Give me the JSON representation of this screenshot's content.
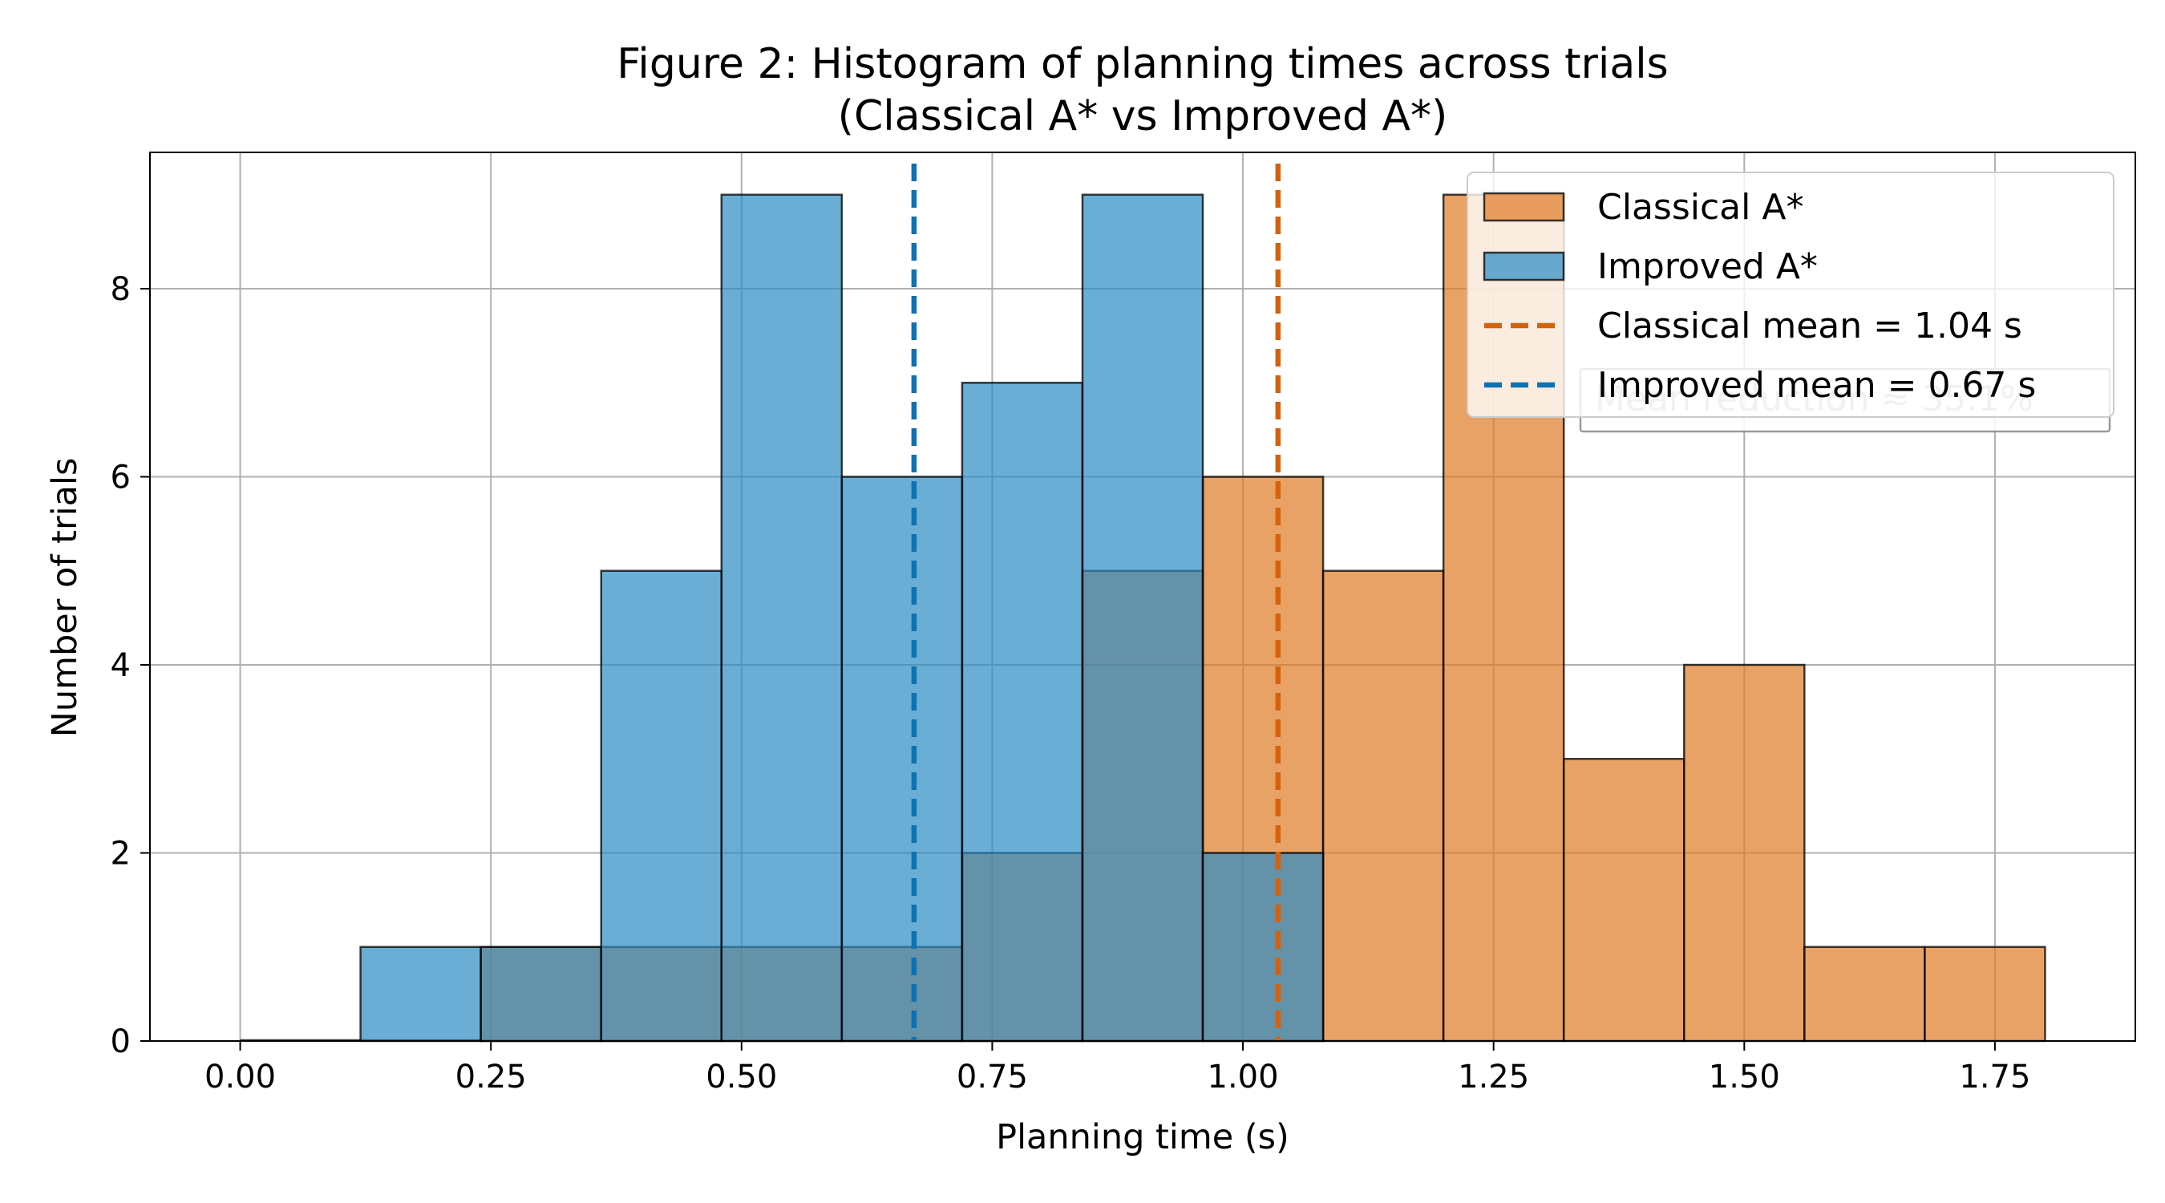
{
  "chart_data": {
    "type": "bar",
    "title": "Figure 2: Histogram of planning times across trials",
    "subtitle": "(Classical A* vs Improved A*)",
    "xlabel": "Planning time (s)",
    "ylabel": "Number of trials",
    "xlim": [
      -0.09,
      1.89
    ],
    "ylim": [
      0,
      9.45
    ],
    "xticks": [
      "0.00",
      "0.25",
      "0.50",
      "0.75",
      "1.00",
      "1.25",
      "1.50",
      "1.75"
    ],
    "yticks": [
      "0",
      "2",
      "4",
      "6",
      "8"
    ],
    "grid": true,
    "bin_edges": [
      0.0,
      0.12,
      0.24,
      0.36,
      0.48,
      0.6,
      0.72,
      0.84,
      0.96,
      1.08,
      1.2,
      1.32,
      1.44,
      1.56,
      1.68,
      1.8
    ],
    "series": [
      {
        "name": "Classical A*",
        "color": "#e07b25",
        "counts": [
          0,
          0,
          1,
          1,
          1,
          1,
          2,
          5,
          6,
          5,
          9,
          3,
          4,
          1,
          1
        ]
      },
      {
        "name": "Improved A*",
        "color": "#2b8cc4",
        "counts": [
          0,
          1,
          1,
          5,
          9,
          6,
          7,
          9,
          2,
          0,
          0,
          0,
          0,
          0,
          0
        ]
      }
    ],
    "mean_lines": [
      {
        "label": "Classical mean = 1.04 s",
        "value": 1.035,
        "color": "#d4620c"
      },
      {
        "label": "Improved mean = 0.67 s",
        "value": 0.672,
        "color": "#0d72b3"
      }
    ],
    "annotation": "Mean reduction ≈ 35.1%",
    "legend_position": "upper right"
  }
}
